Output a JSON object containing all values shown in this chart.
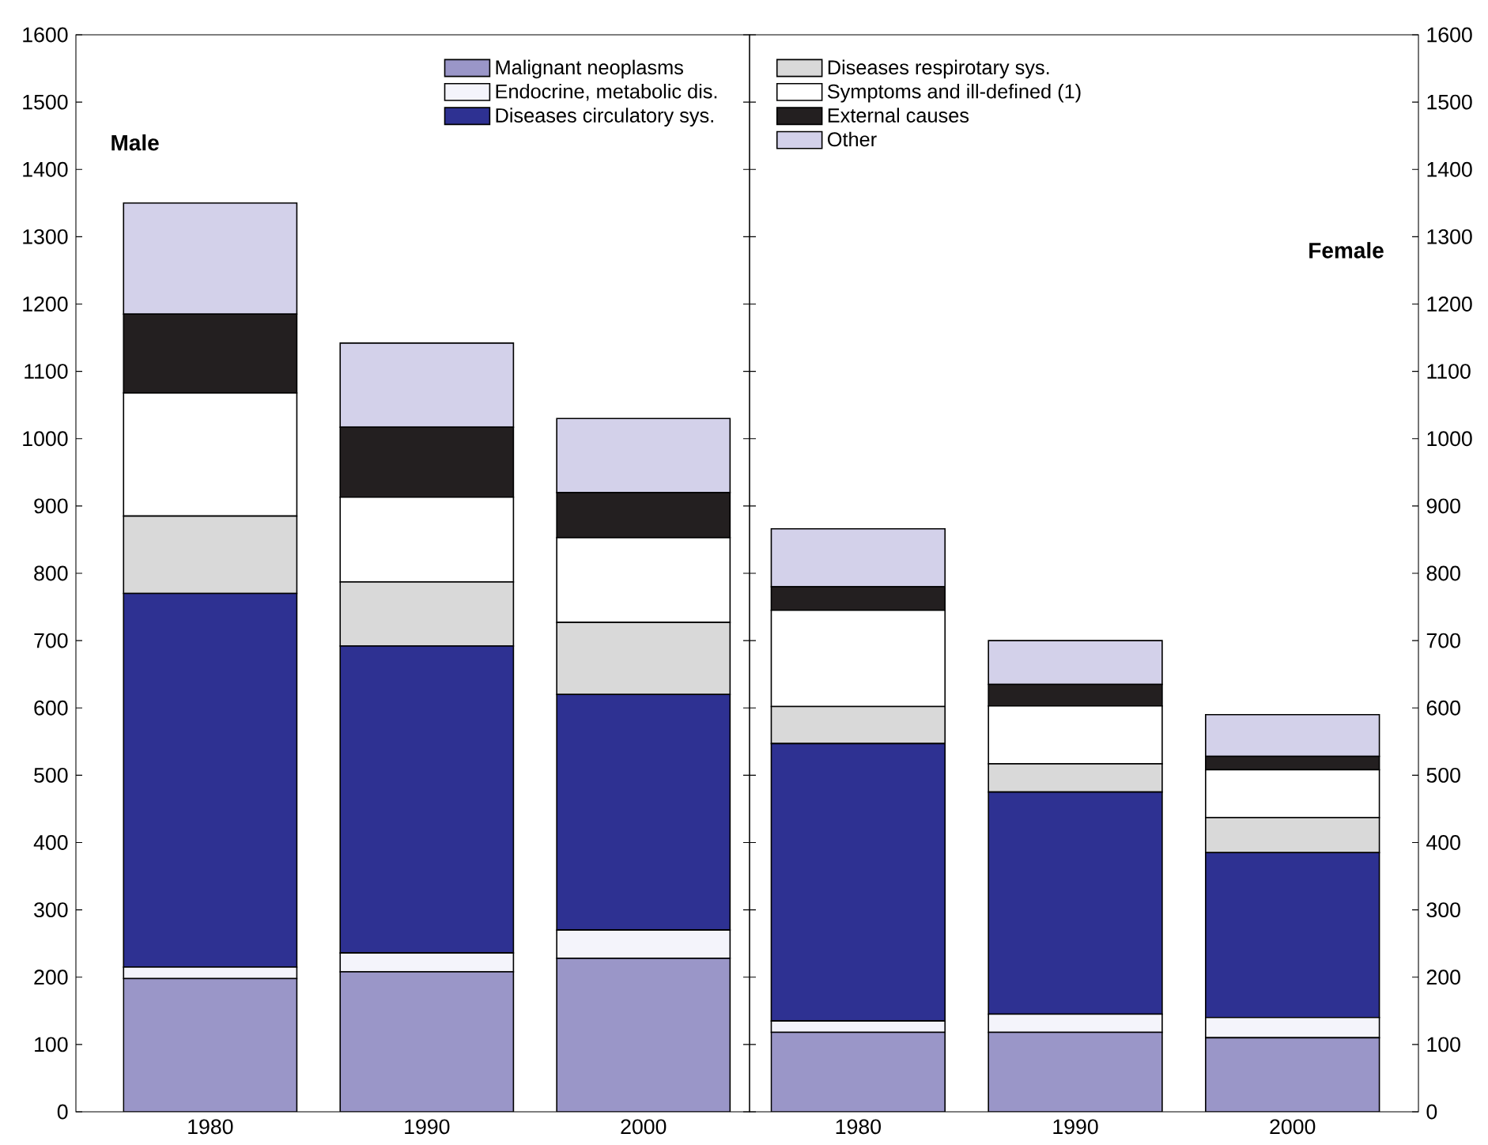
{
  "chart_data": [
    {
      "type": "bar",
      "title": "Male",
      "stacked": true,
      "categories": [
        "1980",
        "1990",
        "2000"
      ],
      "ylim": [
        0,
        1600
      ],
      "yticks": [
        0,
        100,
        200,
        300,
        400,
        500,
        600,
        700,
        800,
        900,
        1000,
        1100,
        1200,
        1300,
        1400,
        1500,
        1600
      ],
      "legend": "top right",
      "series": [
        {
          "name": "Malignant neoplasms",
          "color": "#9a96c8",
          "values": [
            198,
            208,
            228
          ]
        },
        {
          "name": "Endocrine, metabolic dis.",
          "color": "#f4f4fb",
          "values": [
            17,
            28,
            42
          ]
        },
        {
          "name": "Diseases circulatory sys.",
          "color": "#2e3192",
          "values": [
            555,
            456,
            350
          ]
        },
        {
          "color": "#d9d9d9",
          "values": [
            115,
            95,
            107
          ]
        },
        {
          "color": "#ffffff",
          "values": [
            183,
            126,
            126
          ]
        },
        {
          "color": "#231f20",
          "values": [
            117,
            104,
            67
          ]
        },
        {
          "color": "#d3d1ea",
          "values": [
            165,
            125,
            110
          ]
        }
      ]
    },
    {
      "type": "bar",
      "title": "Female",
      "stacked": true,
      "categories": [
        "1980",
        "1990",
        "2000"
      ],
      "ylim": [
        0,
        1600
      ],
      "yticks": [
        0,
        100,
        200,
        300,
        400,
        500,
        600,
        700,
        800,
        900,
        1000,
        1100,
        1200,
        1300,
        1400,
        1500,
        1600
      ],
      "legend": "top left",
      "series": [
        {
          "color": "#9a96c8",
          "values": [
            118,
            118,
            110
          ]
        },
        {
          "color": "#f4f4fb",
          "values": [
            17,
            27,
            30
          ]
        },
        {
          "color": "#2e3192",
          "values": [
            412,
            330,
            245
          ]
        },
        {
          "name": "Diseases respirotary sys.",
          "color": "#d9d9d9",
          "values": [
            55,
            42,
            52
          ]
        },
        {
          "name": "Symptoms and ill-defined (1)",
          "color": "#ffffff",
          "values": [
            143,
            86,
            71
          ]
        },
        {
          "name": "External causes",
          "color": "#231f20",
          "values": [
            35,
            32,
            20
          ]
        },
        {
          "name": "Other",
          "color": "#d3d1ea",
          "values": [
            86,
            65,
            62
          ]
        }
      ]
    }
  ]
}
